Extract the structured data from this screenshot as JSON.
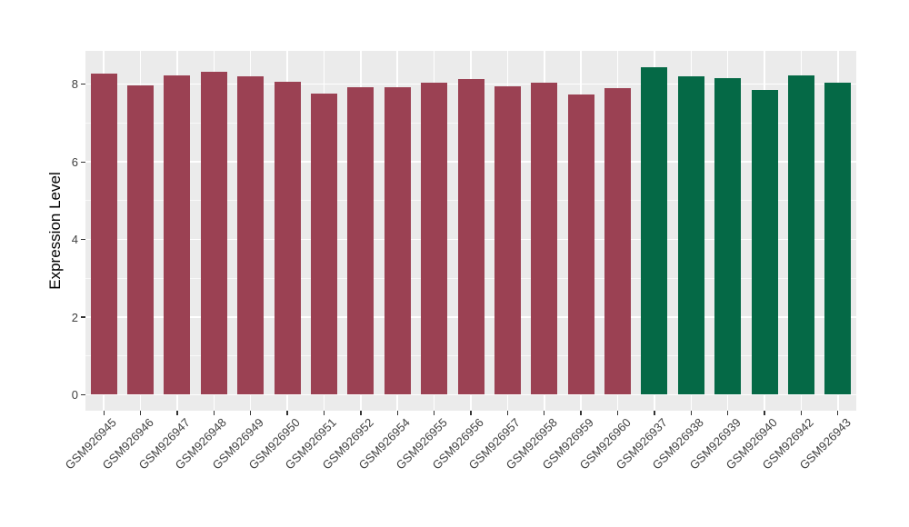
{
  "chart_data": {
    "type": "bar",
    "title": "",
    "xlabel": "",
    "ylabel": "Expression Level",
    "categories": [
      "GSM926945",
      "GSM926946",
      "GSM926947",
      "GSM926948",
      "GSM926949",
      "GSM926950",
      "GSM926951",
      "GSM926952",
      "GSM926954",
      "GSM926955",
      "GSM926956",
      "GSM926957",
      "GSM926958",
      "GSM926959",
      "GSM926960",
      "GSM926937",
      "GSM926938",
      "GSM926939",
      "GSM926940",
      "GSM926942",
      "GSM926943"
    ],
    "values": [
      8.27,
      7.96,
      8.22,
      8.31,
      8.2,
      8.07,
      7.76,
      7.92,
      7.92,
      8.05,
      8.13,
      7.95,
      8.04,
      7.73,
      7.9,
      8.44,
      8.2,
      8.16,
      7.86,
      8.23,
      8.04
    ],
    "groups": [
      0,
      0,
      0,
      0,
      0,
      0,
      0,
      0,
      0,
      0,
      0,
      0,
      0,
      0,
      0,
      1,
      1,
      1,
      1,
      1,
      1
    ],
    "group_colors": [
      "#9B4153",
      "#056946"
    ],
    "ytick_values": [
      0,
      2,
      4,
      6,
      8
    ],
    "minor_tick_values": [
      1,
      3,
      5,
      7
    ],
    "ylim": [
      -0.41,
      8.86
    ],
    "grid": "on",
    "legend": "none",
    "panel_bg": "#EBEBEB",
    "grid_major_color": "#FFFFFF",
    "grid_minor_color": "#FFFFFF",
    "axis_text_color": "#404040"
  }
}
